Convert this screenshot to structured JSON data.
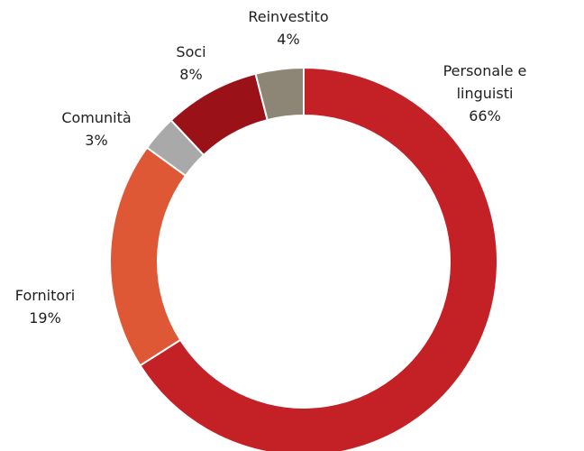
{
  "chart_data": {
    "type": "donut",
    "categories": [
      "Personale e linguisti",
      "Fornitori",
      "Comunità",
      "Soci",
      "Reinvestito"
    ],
    "values": [
      66,
      19,
      3,
      8,
      4
    ],
    "value_labels": [
      "66%",
      "19%",
      "3%",
      "8%",
      "4%"
    ],
    "colors": [
      "#c42127",
      "#de5836",
      "#a9a9a9",
      "#9a1218",
      "#8d8676"
    ]
  }
}
